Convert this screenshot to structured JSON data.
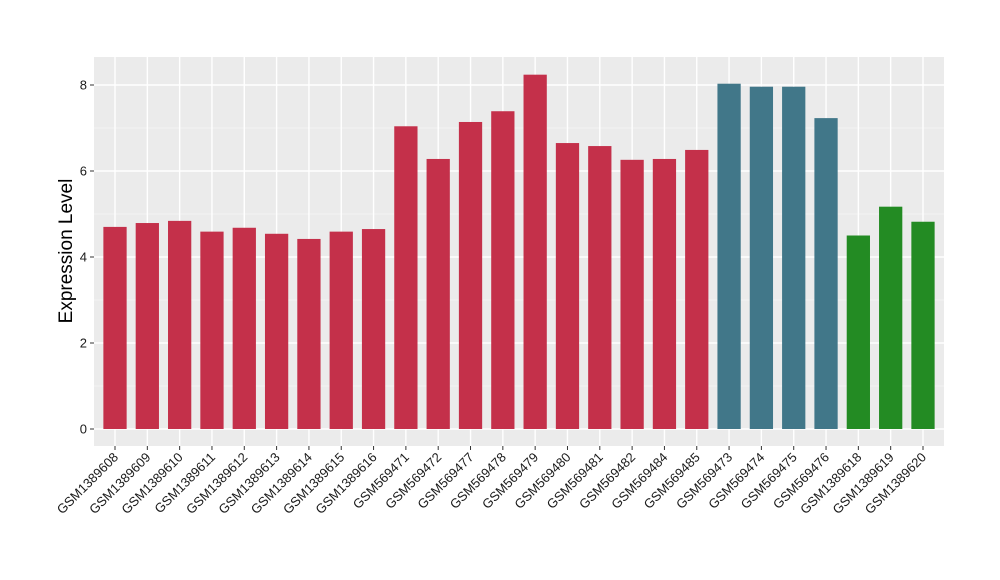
{
  "chart_data": {
    "type": "bar",
    "title": "",
    "xlabel": "",
    "ylabel": "Expression Level",
    "ylim": [
      0,
      8.6
    ],
    "yticks": [
      0,
      2,
      4,
      6,
      8
    ],
    "grid": true,
    "legend": "none",
    "background": "#ebebeb",
    "categories": [
      "GSM1389608",
      "GSM1389609",
      "GSM1389610",
      "GSM1389611",
      "GSM1389612",
      "GSM1389613",
      "GSM1389614",
      "GSM1389615",
      "GSM1389616",
      "GSM569471",
      "GSM569472",
      "GSM569477",
      "GSM569478",
      "GSM569479",
      "GSM569480",
      "GSM569481",
      "GSM569482",
      "GSM569484",
      "GSM569485",
      "GSM569473",
      "GSM569474",
      "GSM569475",
      "GSM569476",
      "GSM1389618",
      "GSM1389619",
      "GSM1389620"
    ],
    "values": [
      4.7,
      4.79,
      4.84,
      4.59,
      4.68,
      4.54,
      4.42,
      4.59,
      4.65,
      7.04,
      6.28,
      7.14,
      7.39,
      8.24,
      6.65,
      6.58,
      6.26,
      6.28,
      6.49,
      8.03,
      7.96,
      7.96,
      7.23,
      4.5,
      5.17,
      4.82
    ],
    "bar_colors": [
      "#c4304a",
      "#c4304a",
      "#c4304a",
      "#c4304a",
      "#c4304a",
      "#c4304a",
      "#c4304a",
      "#c4304a",
      "#c4304a",
      "#c4304a",
      "#c4304a",
      "#c4304a",
      "#c4304a",
      "#c4304a",
      "#c4304a",
      "#c4304a",
      "#c4304a",
      "#c4304a",
      "#c4304a",
      "#417789",
      "#417789",
      "#417789",
      "#417789",
      "#238b23",
      "#238b23",
      "#238b23"
    ]
  }
}
